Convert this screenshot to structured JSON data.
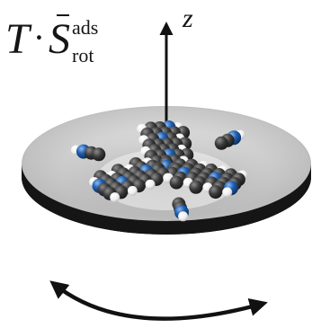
{
  "formula": {
    "symbol_T": "T",
    "operator": "·",
    "symbol_S": "S",
    "superscript": "ads",
    "subscript": "rot"
  },
  "axis": {
    "label": "z"
  },
  "colors": {
    "atom_carbon": "#3a3a3a",
    "atom_nitrogen": "#1f5fb0",
    "atom_hydrogen": "#f2f2f2",
    "disk_top": "#c9c9c9",
    "disk_edge": "#151515",
    "arrow": "#111111"
  },
  "icons": [
    "z-axis-arrow-icon",
    "rotation-arrow-icon"
  ]
}
